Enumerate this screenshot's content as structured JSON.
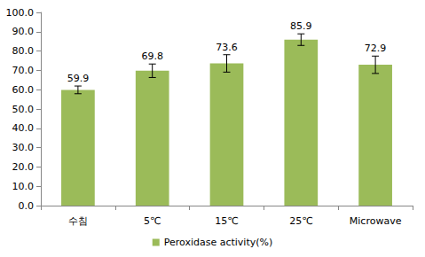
{
  "chart_data": {
    "type": "bar",
    "categories": [
      "수침",
      "5℃",
      "15℃",
      "25℃",
      "Microwave"
    ],
    "series": [
      {
        "name": "Peroxidase activity(%)",
        "color": "#9bbb59",
        "values": [
          59.9,
          69.8,
          73.6,
          85.9,
          72.9
        ],
        "errors": [
          2.0,
          3.5,
          4.5,
          3.0,
          4.5
        ]
      }
    ],
    "ylim": [
      0,
      100
    ],
    "yticks": [
      {
        "value": 0,
        "label": "0.0"
      },
      {
        "value": 10,
        "label": "10.0"
      },
      {
        "value": 20,
        "label": "20.0"
      },
      {
        "value": 30,
        "label": "30.0"
      },
      {
        "value": 40,
        "label": "40.0"
      },
      {
        "value": 50,
        "label": "50.0"
      },
      {
        "value": 60,
        "label": "60.0"
      },
      {
        "value": 70,
        "label": "70.0"
      },
      {
        "value": 80,
        "label": "80.0"
      },
      {
        "value": 90,
        "label": "90.0"
      },
      {
        "value": 100,
        "label": "100.0"
      }
    ],
    "grid": false,
    "legend": "bottom",
    "data_labels": true
  }
}
